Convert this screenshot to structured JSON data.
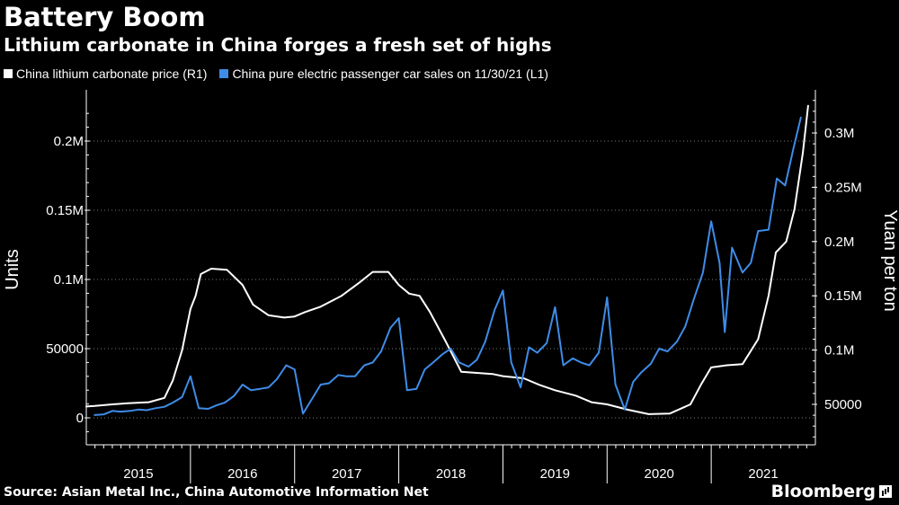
{
  "header": {
    "title": "Battery Boom",
    "subtitle": "Lithium carbonate in China forges a fresh set of highs"
  },
  "legend": {
    "items": [
      {
        "label": "China lithium carbonate price (R1)",
        "color": "#ffffff"
      },
      {
        "label": "China pure electric passenger car sales on 11/30/21 (L1)",
        "color": "#3f8ce8"
      }
    ]
  },
  "footer": {
    "source": "Source: Asian Metal Inc., China Automotive Information Net",
    "brand": "Bloomberg"
  },
  "chart_data": {
    "type": "line",
    "title": "Battery Boom",
    "subtitle": "Lithium carbonate in China forges a fresh set of highs",
    "ylabel_left": "Units",
    "ylabel_right": "Yuan per ton",
    "ylim_left": [
      -15000,
      220000
    ],
    "ylim_right": [
      15000,
      330000
    ],
    "left_ticks": [
      {
        "value": 0,
        "label": "0"
      },
      {
        "value": 50000,
        "label": "50000"
      },
      {
        "value": 100000,
        "label": "0.1M"
      },
      {
        "value": 150000,
        "label": "0.15M"
      },
      {
        "value": 200000,
        "label": "0.2M"
      }
    ],
    "right_ticks": [
      {
        "value": 50000,
        "label": "50000"
      },
      {
        "value": 100000,
        "label": "0.1M"
      },
      {
        "value": 150000,
        "label": "0.15M"
      },
      {
        "value": 200000,
        "label": "0.2M"
      },
      {
        "value": 250000,
        "label": "0.25M"
      },
      {
        "value": 300000,
        "label": "0.3M"
      }
    ],
    "x_labels": [
      "2015",
      "2016",
      "2017",
      "2018",
      "2019",
      "2020",
      "2021"
    ],
    "x_range": [
      2015.0,
      2022.0
    ],
    "grid": true,
    "series": [
      {
        "name": "China lithium carbonate price (R1)",
        "axis": "right",
        "color": "#ffffff",
        "points": [
          [
            2015.0,
            48000
          ],
          [
            2015.08,
            48500
          ],
          [
            2015.25,
            50000
          ],
          [
            2015.4,
            51000
          ],
          [
            2015.6,
            52000
          ],
          [
            2015.75,
            56000
          ],
          [
            2015.83,
            72000
          ],
          [
            2015.92,
            100000
          ],
          [
            2016.0,
            138000
          ],
          [
            2016.05,
            150000
          ],
          [
            2016.1,
            170000
          ],
          [
            2016.2,
            175000
          ],
          [
            2016.35,
            174000
          ],
          [
            2016.5,
            160000
          ],
          [
            2016.6,
            142000
          ],
          [
            2016.75,
            132000
          ],
          [
            2016.9,
            130000
          ],
          [
            2017.0,
            131000
          ],
          [
            2017.1,
            135000
          ],
          [
            2017.25,
            140000
          ],
          [
            2017.45,
            150000
          ],
          [
            2017.62,
            162000
          ],
          [
            2017.75,
            172000
          ],
          [
            2017.9,
            172000
          ],
          [
            2018.0,
            160000
          ],
          [
            2018.1,
            152000
          ],
          [
            2018.2,
            150000
          ],
          [
            2018.3,
            135000
          ],
          [
            2018.45,
            108000
          ],
          [
            2018.6,
            80000
          ],
          [
            2018.75,
            79000
          ],
          [
            2018.9,
            78000
          ],
          [
            2019.0,
            76000
          ],
          [
            2019.2,
            74000
          ],
          [
            2019.35,
            68000
          ],
          [
            2019.5,
            63000
          ],
          [
            2019.7,
            58000
          ],
          [
            2019.85,
            52000
          ],
          [
            2020.0,
            50000
          ],
          [
            2020.2,
            45000
          ],
          [
            2020.4,
            41000
          ],
          [
            2020.6,
            41500
          ],
          [
            2020.8,
            50000
          ],
          [
            2020.9,
            68000
          ],
          [
            2021.0,
            84000
          ],
          [
            2021.15,
            86000
          ],
          [
            2021.3,
            87000
          ],
          [
            2021.45,
            110000
          ],
          [
            2021.55,
            150000
          ],
          [
            2021.62,
            190000
          ],
          [
            2021.72,
            200000
          ],
          [
            2021.8,
            230000
          ],
          [
            2021.88,
            282000
          ],
          [
            2021.93,
            325000
          ]
        ]
      },
      {
        "name": "China pure electric passenger car sales on 11/30/21 (L1)",
        "axis": "left",
        "color": "#3f8ce8",
        "points": [
          [
            2015.08,
            2000
          ],
          [
            2015.17,
            2500
          ],
          [
            2015.25,
            5000
          ],
          [
            2015.33,
            4500
          ],
          [
            2015.42,
            5000
          ],
          [
            2015.5,
            6000
          ],
          [
            2015.58,
            5500
          ],
          [
            2015.67,
            7000
          ],
          [
            2015.75,
            8000
          ],
          [
            2015.83,
            11000
          ],
          [
            2015.92,
            15000
          ],
          [
            2016.0,
            30000
          ],
          [
            2016.08,
            7000
          ],
          [
            2016.17,
            6500
          ],
          [
            2016.25,
            9000
          ],
          [
            2016.33,
            11000
          ],
          [
            2016.42,
            16000
          ],
          [
            2016.5,
            24000
          ],
          [
            2016.58,
            20000
          ],
          [
            2016.67,
            21000
          ],
          [
            2016.75,
            22000
          ],
          [
            2016.83,
            28000
          ],
          [
            2016.92,
            38000
          ],
          [
            2017.0,
            35000
          ],
          [
            2017.08,
            3000
          ],
          [
            2017.17,
            14000
          ],
          [
            2017.25,
            24000
          ],
          [
            2017.33,
            25000
          ],
          [
            2017.42,
            31000
          ],
          [
            2017.5,
            30000
          ],
          [
            2017.58,
            30000
          ],
          [
            2017.67,
            38000
          ],
          [
            2017.75,
            40000
          ],
          [
            2017.83,
            48000
          ],
          [
            2017.92,
            65000
          ],
          [
            2018.0,
            72000
          ],
          [
            2018.08,
            20000
          ],
          [
            2018.17,
            21000
          ],
          [
            2018.25,
            35000
          ],
          [
            2018.33,
            40000
          ],
          [
            2018.42,
            46000
          ],
          [
            2018.5,
            50000
          ],
          [
            2018.58,
            40000
          ],
          [
            2018.67,
            37000
          ],
          [
            2018.75,
            42000
          ],
          [
            2018.83,
            55000
          ],
          [
            2018.92,
            78000
          ],
          [
            2019.0,
            92000
          ],
          [
            2019.08,
            40000
          ],
          [
            2019.17,
            22000
          ],
          [
            2019.25,
            51000
          ],
          [
            2019.33,
            47000
          ],
          [
            2019.42,
            54000
          ],
          [
            2019.5,
            80000
          ],
          [
            2019.58,
            38000
          ],
          [
            2019.67,
            43000
          ],
          [
            2019.75,
            40000
          ],
          [
            2019.83,
            38000
          ],
          [
            2019.92,
            47000
          ],
          [
            2020.0,
            87000
          ],
          [
            2020.08,
            24000
          ],
          [
            2020.17,
            6000
          ],
          [
            2020.25,
            26000
          ],
          [
            2020.33,
            33000
          ],
          [
            2020.42,
            39000
          ],
          [
            2020.5,
            50000
          ],
          [
            2020.58,
            48000
          ],
          [
            2020.67,
            55000
          ],
          [
            2020.75,
            66000
          ],
          [
            2020.83,
            85000
          ],
          [
            2020.92,
            105000
          ],
          [
            2021.0,
            142000
          ],
          [
            2021.08,
            112000
          ],
          [
            2021.13,
            62000
          ],
          [
            2021.2,
            123000
          ],
          [
            2021.3,
            105000
          ],
          [
            2021.38,
            112000
          ],
          [
            2021.45,
            135000
          ],
          [
            2021.55,
            136000
          ],
          [
            2021.63,
            173000
          ],
          [
            2021.71,
            168000
          ],
          [
            2021.79,
            195000
          ],
          [
            2021.86,
            217000
          ]
        ]
      }
    ]
  }
}
